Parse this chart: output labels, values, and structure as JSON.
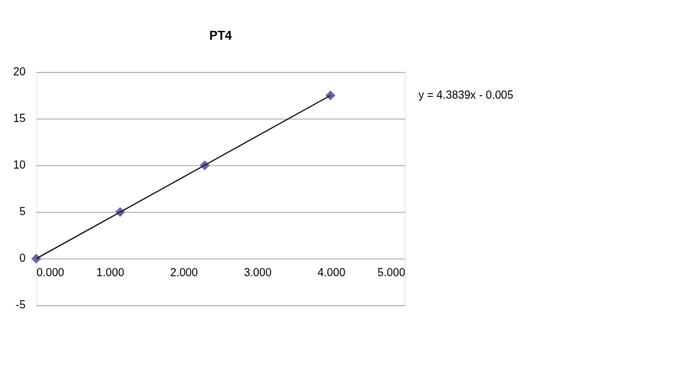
{
  "chart_data": {
    "type": "scatter",
    "title": "PT4",
    "x": [
      0.0,
      1.137,
      2.285,
      3.99
    ],
    "series": [
      {
        "color": "#6667a3",
        "values": [
          0,
          5,
          10,
          17.5
        ],
        "marker": "diamond"
      },
      {
        "type": "line",
        "color": "#1a1a3a",
        "x": [
          0.0,
          3.99
        ],
        "values": [
          0,
          17.5
        ],
        "line_style": "solid"
      }
    ],
    "xlim": [
      0,
      5
    ],
    "xticks": [
      {
        "value": 0,
        "label": "0.000"
      },
      {
        "value": 1,
        "label": "1.000"
      },
      {
        "value": 2,
        "label": "2.000"
      },
      {
        "value": 3,
        "label": "3.000"
      },
      {
        "value": 4,
        "label": "4.000"
      },
      {
        "value": 5,
        "label": "5.000"
      }
    ],
    "ylim": [
      -5,
      20
    ],
    "yticks": [
      -5,
      0,
      5,
      10,
      15,
      20
    ],
    "grid": "y",
    "annotations": [
      "y = 4.3839x - 0.005"
    ]
  }
}
